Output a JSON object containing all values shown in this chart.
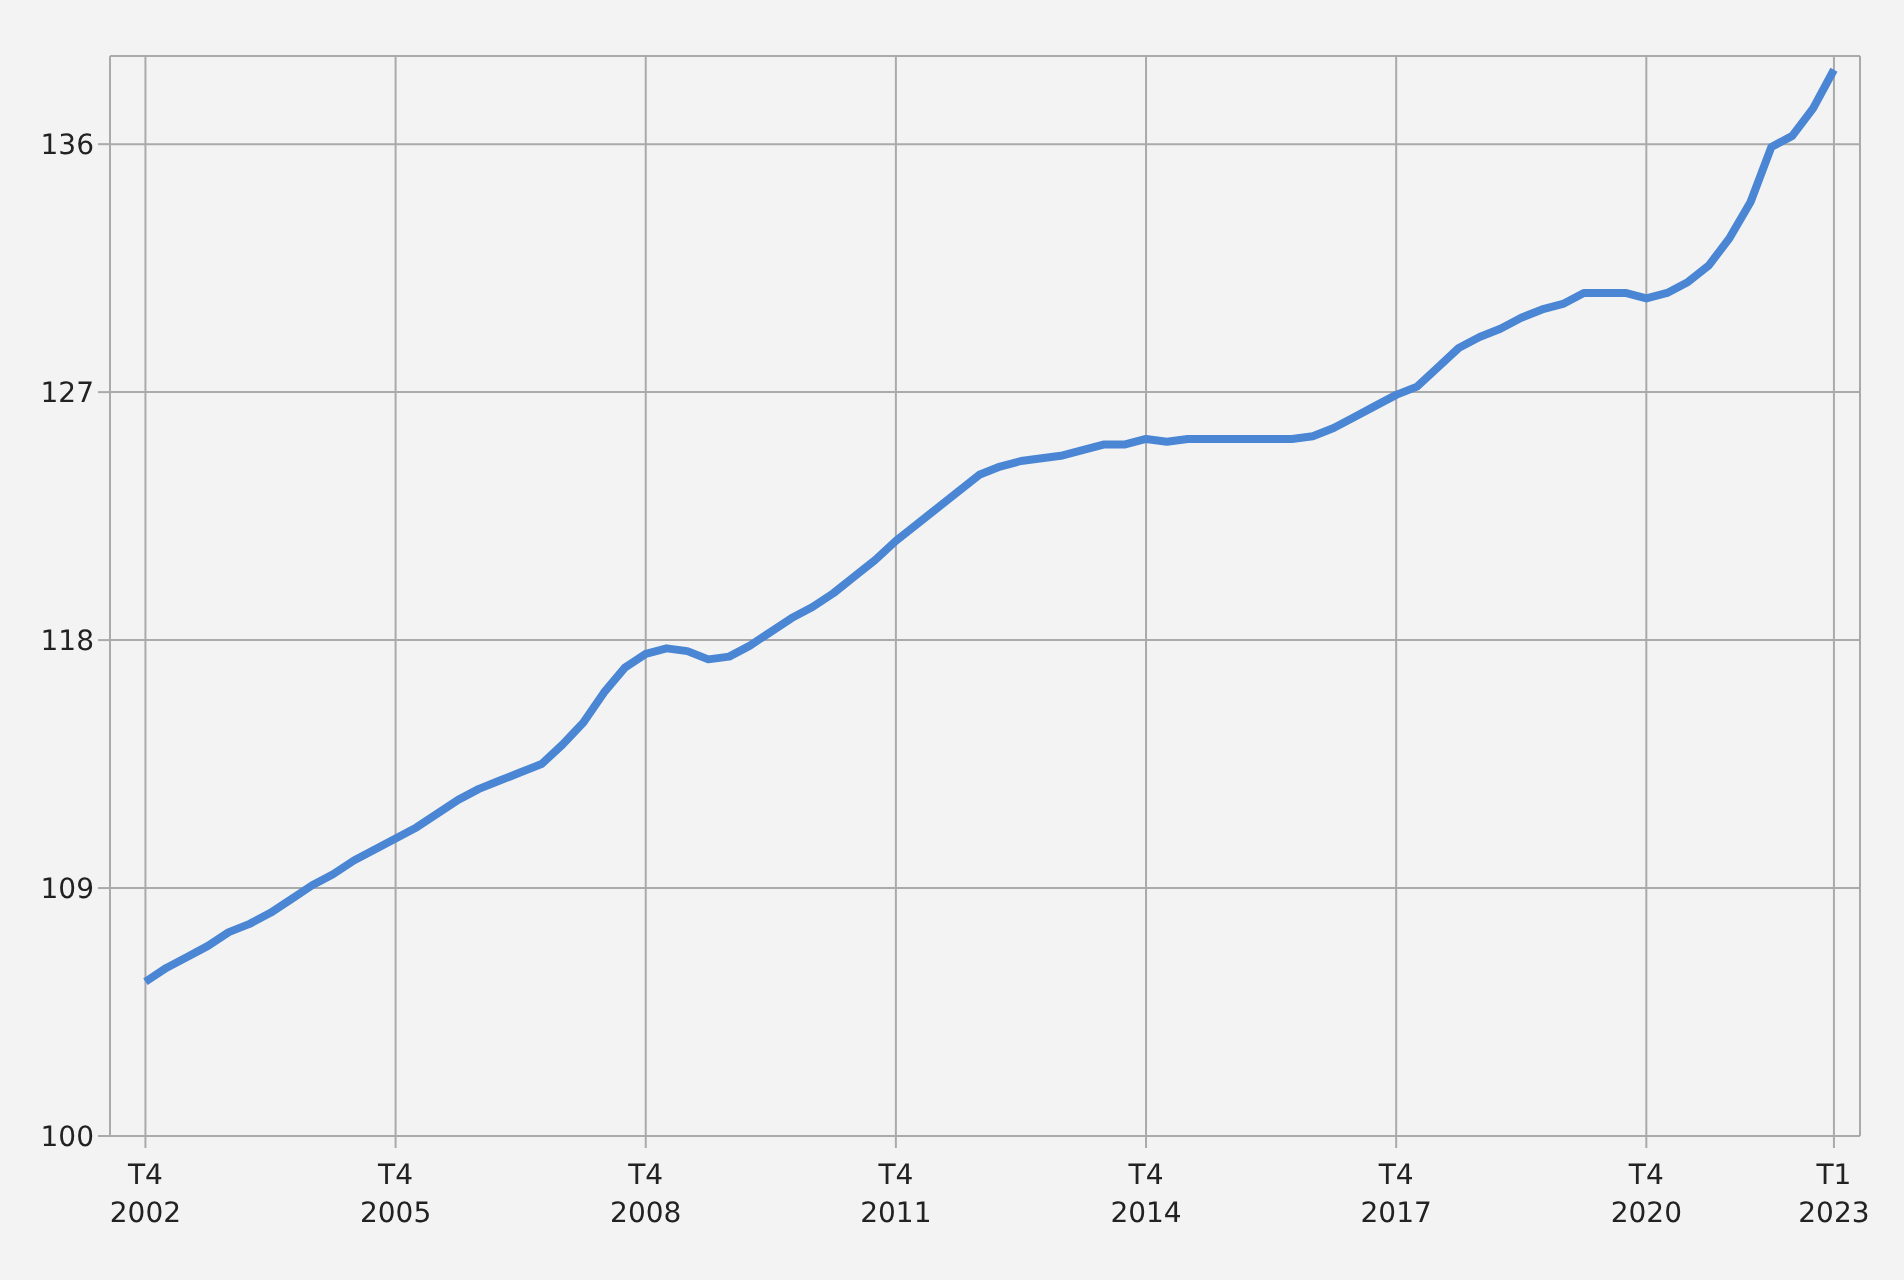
{
  "chart_data": {
    "type": "line",
    "categories": [
      "T4\n2002",
      null,
      null,
      null,
      null,
      null,
      null,
      null,
      null,
      null,
      null,
      null,
      "T4\n2005",
      null,
      null,
      null,
      null,
      null,
      null,
      null,
      null,
      null,
      null,
      null,
      "T4\n2008",
      null,
      null,
      null,
      null,
      null,
      null,
      null,
      null,
      null,
      null,
      null,
      "T4\n2011",
      null,
      null,
      null,
      null,
      null,
      null,
      null,
      null,
      null,
      null,
      null,
      "T4\n2014",
      null,
      null,
      null,
      null,
      null,
      null,
      null,
      null,
      null,
      null,
      null,
      "T4\n2017",
      null,
      null,
      null,
      null,
      null,
      null,
      null,
      null,
      null,
      null,
      null,
      "T4\n2020",
      null,
      null,
      null,
      null,
      null,
      null,
      null,
      null,
      "T1\n2023"
    ],
    "series": [
      {
        "color": "#4a86d4",
        "values": [
          105.6,
          106.1,
          106.5,
          106.9,
          107.4,
          107.7,
          108.1,
          108.6,
          109.1,
          109.5,
          110.0,
          110.4,
          110.8,
          111.2,
          111.7,
          112.2,
          112.6,
          112.9,
          113.2,
          113.5,
          114.2,
          115.0,
          116.1,
          117.0,
          117.5,
          117.7,
          117.6,
          117.3,
          117.4,
          117.8,
          118.3,
          118.8,
          119.2,
          119.7,
          120.3,
          120.9,
          121.6,
          122.2,
          122.8,
          123.4,
          124.0,
          124.3,
          124.5,
          124.6,
          124.7,
          124.9,
          125.1,
          125.1,
          125.3,
          125.2,
          125.3,
          125.3,
          125.3,
          125.3,
          125.3,
          125.3,
          125.4,
          125.7,
          126.1,
          126.5,
          126.9,
          127.2,
          127.9,
          128.6,
          129.0,
          129.3,
          129.7,
          130.0,
          130.2,
          130.6,
          130.6,
          130.6,
          130.4,
          130.6,
          131.0,
          131.6,
          132.6,
          133.9,
          135.9,
          136.3,
          137.3,
          138.7
        ]
      }
    ],
    "ylim": [
      100,
      139.2
    ],
    "yticks": [
      100,
      109,
      118,
      127,
      136
    ],
    "grid": true,
    "marker": "none",
    "line_style": "solid",
    "legend": false
  }
}
